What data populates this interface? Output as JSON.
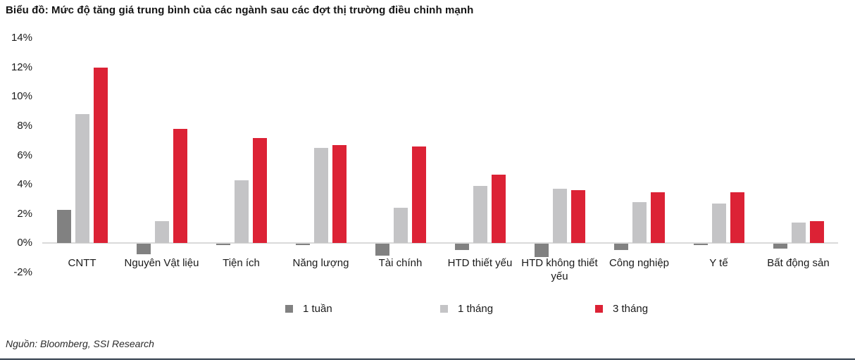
{
  "title": "Biểu đồ: Mức độ tăng giá trung bình của các ngành sau các đợt thị trường điều chỉnh mạnh",
  "source_note": "Nguồn: Bloomberg, SSI Research",
  "colors": {
    "series_1_week": "#818181",
    "series_1_month": "#c4c4c6",
    "series_3_month": "#dc2235",
    "axis_line": "#d9d9d9",
    "bottom_rule": "#2e3a4a",
    "text": "#1a1a1a"
  },
  "chart_data": {
    "type": "bar",
    "title": "Biểu đồ: Mức độ tăng giá trung bình của các ngành sau các đợt thị trường điều chỉnh mạnh",
    "xlabel": "",
    "ylabel": "",
    "ylim": [
      -2,
      14
    ],
    "grid": false,
    "legend_position": "bottom",
    "y_ticks": [
      "14%",
      "12%",
      "10%",
      "8%",
      "6%",
      "4%",
      "2%",
      "0%",
      "-2%"
    ],
    "y_tick_values": [
      14,
      12,
      10,
      8,
      6,
      4,
      2,
      0,
      -2
    ],
    "categories": [
      "CNTT",
      "Nguyên Vật liệu",
      "Tiện ích",
      "Năng lượng",
      "Tài chính",
      "HTD thiết yếu",
      "HTD không thiết yếu",
      "Công nghiệp",
      "Y tế",
      "Bất động sản"
    ],
    "series": [
      {
        "name": "1 tuần",
        "color": "#818181",
        "values": [
          2.3,
          -0.7,
          -0.1,
          -0.1,
          -0.8,
          -0.4,
          -0.9,
          -0.4,
          -0.1,
          -0.3
        ]
      },
      {
        "name": "1 tháng",
        "color": "#c4c4c6",
        "values": [
          8.8,
          1.5,
          4.3,
          6.5,
          2.4,
          3.9,
          3.7,
          2.8,
          2.7,
          1.4
        ]
      },
      {
        "name": "3 tháng",
        "color": "#dc2235",
        "values": [
          12.0,
          7.8,
          7.2,
          6.7,
          6.6,
          4.7,
          3.6,
          3.5,
          3.5,
          1.5
        ]
      }
    ]
  }
}
